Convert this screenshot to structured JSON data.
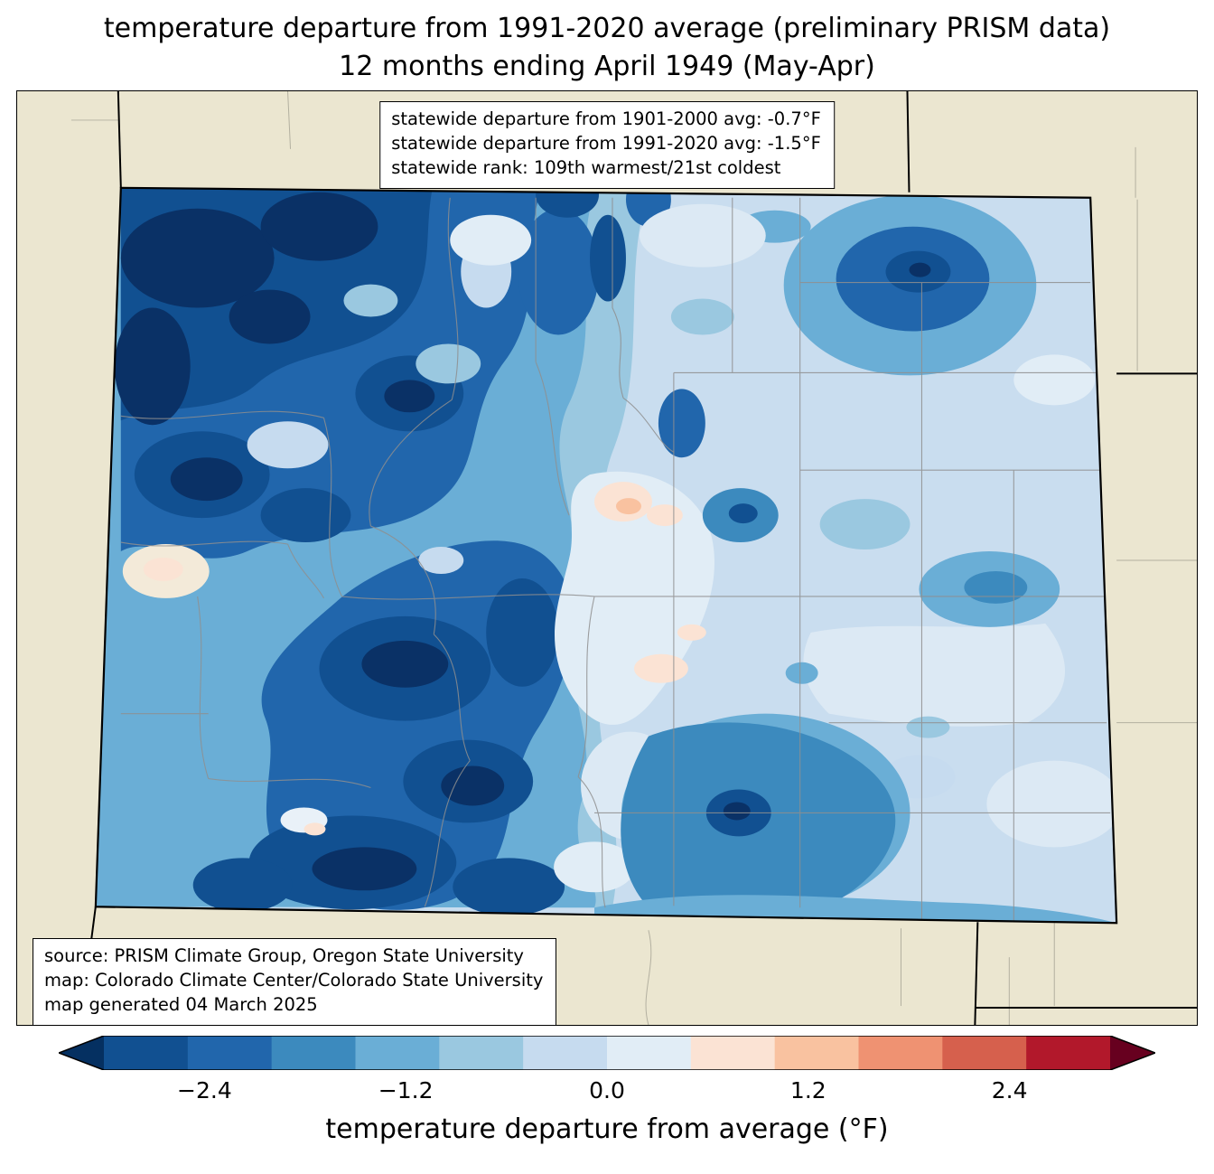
{
  "title": {
    "line1": "temperature departure from 1991-2020 average (preliminary PRISM data)",
    "line2": "12 months ending April 1949 (May-Apr)"
  },
  "stats_box": {
    "lines": [
      "statewide departure from 1901-2000 avg: -0.7°F",
      "statewide departure from 1991-2020 avg: -1.5°F",
      "statewide rank: 109th warmest/21st coldest"
    ]
  },
  "source_box": {
    "lines": [
      "source: PRISM Climate Group, Oregon State University",
      "map: Colorado Climate Center/Colorado State University",
      "map generated 04 March 2025"
    ]
  },
  "colorbar": {
    "label": "temperature departure from average (°F)",
    "range": [
      -3,
      3
    ],
    "ticks": [
      {
        "value": -2.4,
        "label": "−2.4"
      },
      {
        "value": -1.2,
        "label": "−1.2"
      },
      {
        "value": 0.0,
        "label": "0.0"
      },
      {
        "value": 1.2,
        "label": "1.2"
      },
      {
        "value": 2.4,
        "label": "2.4"
      }
    ],
    "segment_colors": [
      "#115091",
      "#2166ac",
      "#3c8abe",
      "#6aaed6",
      "#9ac8e0",
      "#c6dbef",
      "#e1edf6",
      "#fbe3d4",
      "#f9c2a0",
      "#ef9272",
      "#d6604d",
      "#b2182b"
    ],
    "left_arrow_color": "#053061",
    "right_arrow_color": "#67001f"
  },
  "map": {
    "colors": {
      "outer_land": "#ebe6d0",
      "state_base": "#c9ddef",
      "state_border": "#000000",
      "county_line": "#8f8f8f"
    }
  }
}
